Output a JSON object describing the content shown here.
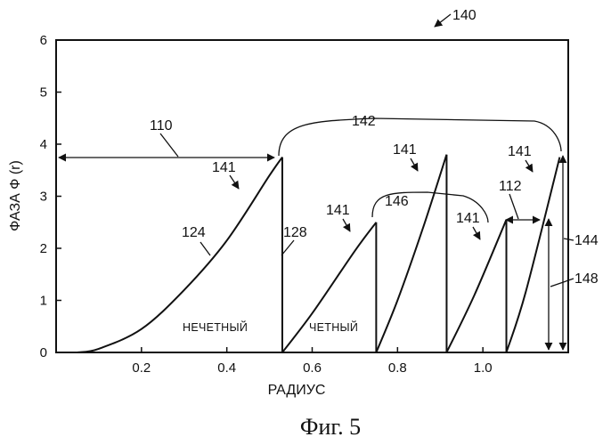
{
  "figure": {
    "ref_number": "140",
    "caption": "Фиг. 5"
  },
  "chart_data": {
    "type": "line",
    "xlabel": "РАДИУС",
    "ylabel": "ФАЗА Ф (r)",
    "xlim": [
      0,
      1.2
    ],
    "ylim": [
      0,
      6
    ],
    "x_ticks": [
      0.2,
      0.4,
      0.6,
      0.8,
      1.0
    ],
    "x_tick_labels": [
      "0.2",
      "0.4",
      "0.6",
      "0.8",
      "1.0"
    ],
    "y_ticks": [
      0,
      1,
      2,
      3,
      4,
      5,
      6
    ],
    "y_tick_labels": [
      "0",
      "1",
      "2",
      "3",
      "4",
      "5",
      "6"
    ],
    "grid": false,
    "segments": [
      {
        "x": [
          0.05,
          0.1,
          0.2,
          0.3,
          0.4,
          0.5,
          0.53
        ],
        "y": [
          0.0,
          0.07,
          0.45,
          1.2,
          2.15,
          3.4,
          3.75
        ]
      },
      {
        "x": [
          0.53,
          0.6,
          0.7,
          0.75
        ],
        "y": [
          0.0,
          0.75,
          1.95,
          2.5
        ]
      },
      {
        "x": [
          0.75,
          0.8,
          0.86,
          0.915
        ],
        "y": [
          0.0,
          1.0,
          2.4,
          3.8
        ]
      },
      {
        "x": [
          0.915,
          0.98,
          1.055
        ],
        "y": [
          0.0,
          1.1,
          2.55
        ]
      },
      {
        "x": [
          1.055,
          1.1,
          1.18
        ],
        "y": [
          0.0,
          1.15,
          3.75
        ]
      }
    ],
    "drops": [
      0.53,
      0.75,
      0.915,
      1.055
    ],
    "region_labels": [
      "НЕЧЕТНЫЙ",
      "ЧЕТНЫЙ"
    ],
    "annotations": [
      "110",
      "141",
      "141",
      "141",
      "141",
      "141",
      "142",
      "146",
      "112",
      "124",
      "128",
      "144",
      "148"
    ]
  }
}
